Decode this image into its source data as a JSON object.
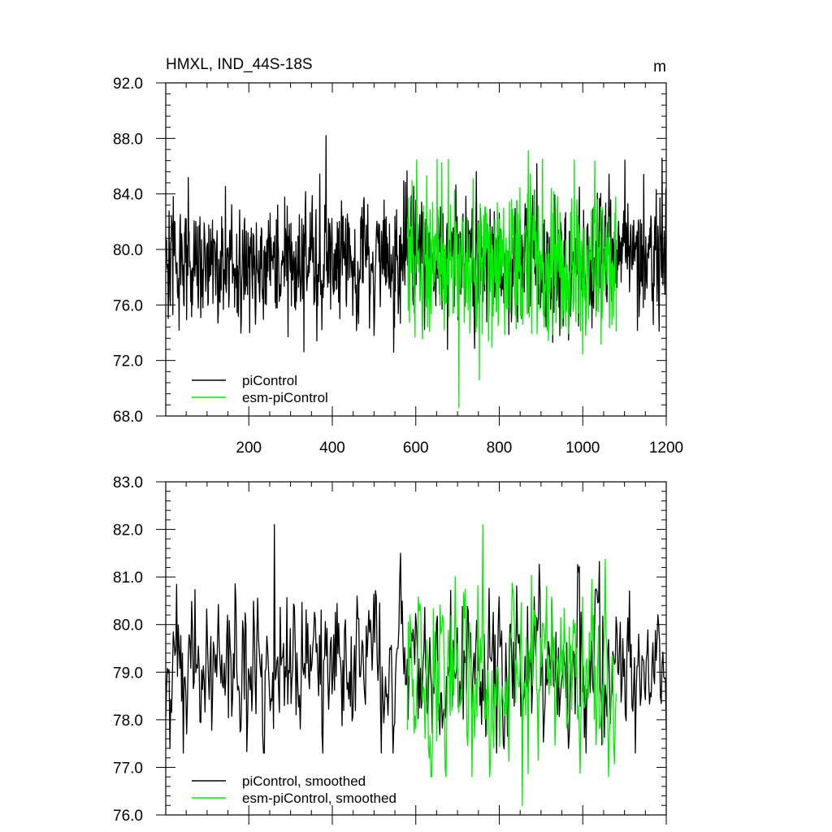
{
  "chart_data": [
    {
      "type": "line",
      "title": "HMXL, IND_44S-18S",
      "units": "m",
      "xlim": [
        1,
        1200
      ],
      "ylim": [
        68,
        92
      ],
      "x_ticks": [
        200,
        400,
        600,
        800,
        1000,
        1200
      ],
      "y_ticks": [
        "68.0",
        "72.0",
        "76.0",
        "80.0",
        "84.0",
        "88.0",
        "92.0"
      ],
      "legend": {
        "position": "bottom-left",
        "entries": [
          "piControl",
          "esm-piControl"
        ]
      },
      "series": [
        {
          "name": "piControl",
          "color": "#000000",
          "x_range": [
            1,
            1200
          ],
          "points": 1200,
          "mean": 79.2,
          "std": 2.3,
          "min": 72.0,
          "max": 88.2,
          "max_at": 385
        },
        {
          "name": "esm-piControl",
          "color": "#00ee00",
          "x_range": [
            580,
            1080
          ],
          "points": 500,
          "mean": 79.0,
          "std": 2.8,
          "min": 68.6,
          "max": 87.1,
          "min_at": 703,
          "max_at": 870
        }
      ]
    },
    {
      "type": "line",
      "xlim": [
        1,
        1200
      ],
      "ylim": [
        76,
        83
      ],
      "y_ticks": [
        "76.0",
        "77.0",
        "78.0",
        "79.0",
        "80.0",
        "81.0",
        "82.0",
        "83.0"
      ],
      "legend": {
        "position": "bottom-left",
        "entries": [
          "piControl, smoothed",
          "esm-piControl, smoothed"
        ]
      },
      "series": [
        {
          "name": "piControl, smoothed",
          "color": "#000000",
          "x_range": [
            1,
            1200
          ],
          "points": 600,
          "mean": 79.1,
          "std": 0.8,
          "min": 76.7,
          "max": 82.1,
          "max_at": 262
        },
        {
          "name": "esm-piControl, smoothed",
          "color": "#00ee00",
          "x_range": [
            580,
            1080
          ],
          "points": 250,
          "mean": 78.9,
          "std": 1.0,
          "min": 76.2,
          "max": 82.1,
          "min_at": 855,
          "max_at": 760
        }
      ]
    }
  ]
}
